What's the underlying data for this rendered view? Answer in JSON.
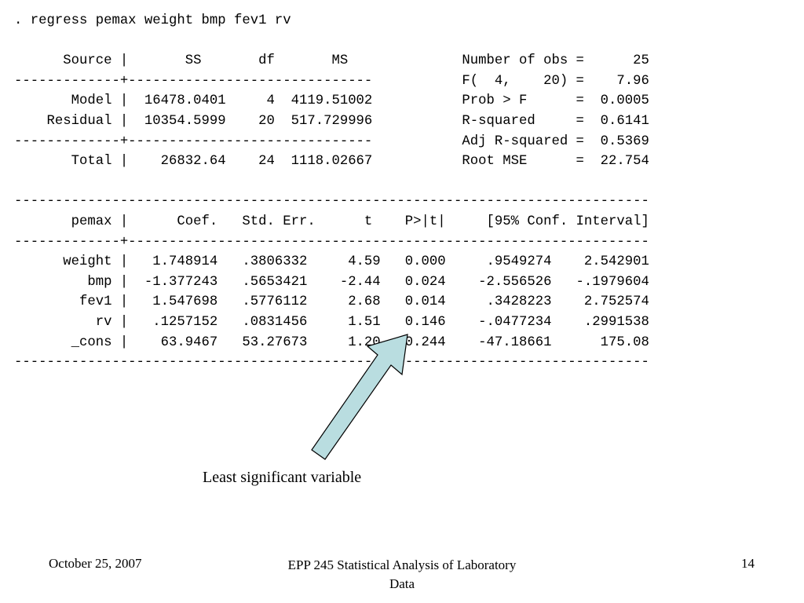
{
  "output_lines": [
    ". regress pemax weight bmp fev1 rv",
    "",
    "      Source |       SS       df       MS              Number of obs =      25",
    "-------------+------------------------------           F(  4,    20) =    7.96",
    "       Model |  16478.0401     4  4119.51002           Prob > F      =  0.0005",
    "    Residual |  10354.5999    20  517.729996           R-squared     =  0.6141",
    "-------------+------------------------------           Adj R-squared =  0.5369",
    "       Total |    26832.64    24  1118.02667           Root MSE      =  22.754",
    "",
    "------------------------------------------------------------------------------",
    "       pemax |      Coef.   Std. Err.      t    P>|t|     [95% Conf. Interval]",
    "-------------+----------------------------------------------------------------",
    "      weight |   1.748914   .3806332     4.59   0.000     .9549274    2.542901",
    "         bmp |  -1.377243   .5653421    -2.44   0.024    -2.556526   -.1979604",
    "        fev1 |   1.547698   .5776112     2.68   0.014     .3428223    2.752574",
    "          rv |   .1257152   .0831456     1.51   0.146    -.0477234    .2991538",
    "       _cons |    63.9467   53.27673     1.20   0.244    -47.18661      175.08",
    "------------------------------------------------------------------------------"
  ],
  "annotation": {
    "caption": "Least significant variable",
    "arrow_fill": "#b9dde0",
    "arrow_stroke": "#000000"
  },
  "footer": {
    "date": "October 25, 2007",
    "title": "EPP 245 Statistical Analysis of Laboratory Data",
    "page": "14"
  }
}
